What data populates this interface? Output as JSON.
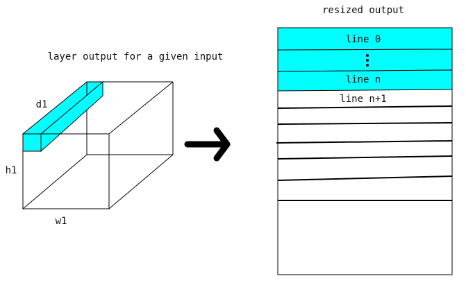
{
  "left": {
    "caption": "layer output for a given input",
    "labels": {
      "depth": "d1",
      "height": "h1",
      "width": "w1"
    }
  },
  "right": {
    "caption": "resized output",
    "line_first": "line 0",
    "line_n": "line n",
    "line_next": "line n+1"
  },
  "colors": {
    "highlight": "#00FFFF",
    "stroke": "#000000",
    "background": "#FFFFFF"
  }
}
